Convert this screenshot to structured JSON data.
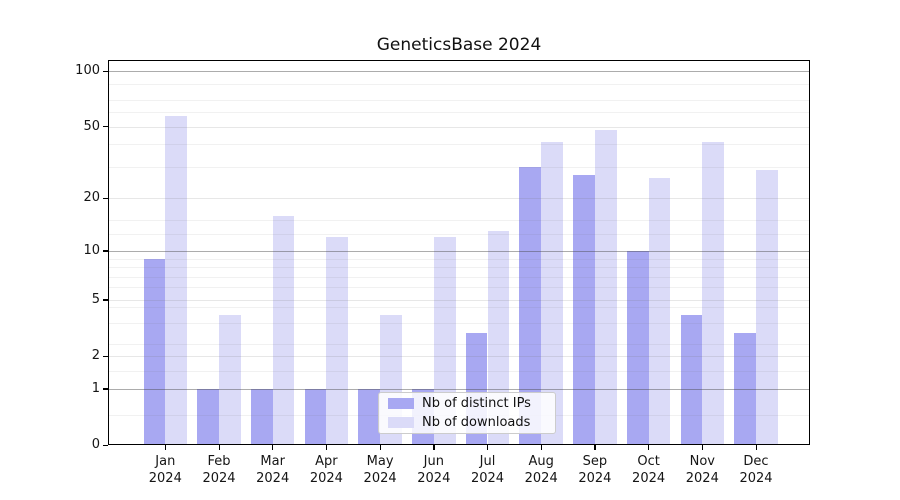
{
  "chart_data": {
    "type": "bar",
    "title": "GeneticsBase 2024",
    "categories": [
      "Jan",
      "Feb",
      "Mar",
      "Apr",
      "May",
      "Jun",
      "Jul",
      "Aug",
      "Sep",
      "Oct",
      "Nov",
      "Dec"
    ],
    "year_suffix": "2024",
    "series": [
      {
        "name": "Nb of distinct IPs",
        "color": "#a8a8f2",
        "values": [
          9,
          1,
          1,
          1,
          1,
          1,
          3,
          30,
          27,
          10,
          4,
          3
        ]
      },
      {
        "name": "Nb of downloads",
        "color": "#dbdbf8",
        "values": [
          57,
          4,
          16,
          12,
          4,
          12,
          13,
          41,
          48,
          26,
          41,
          29
        ]
      }
    ],
    "yscale": "log1p",
    "ylim": [
      0,
      115
    ],
    "y_ticks": [
      0,
      1,
      2,
      5,
      10,
      20,
      50,
      100
    ],
    "grid": {
      "on": true,
      "dark_lines": [
        1,
        10,
        100
      ],
      "light_lines": [
        2,
        5,
        20,
        50
      ],
      "minor_lines": [
        0.45,
        1.5,
        2.5,
        3.5,
        4.5,
        6,
        7,
        8,
        9,
        12.5,
        15,
        30,
        40,
        60,
        70,
        85
      ]
    },
    "legend": {
      "position": "lower center",
      "labels": [
        "Nb of distinct IPs",
        "Nb of downloads"
      ]
    },
    "colors": {
      "background": "#ffffff",
      "axis": "#000000",
      "text": "#151515",
      "series_ips": "#a8a8f2",
      "series_downloads": "#dbdbf8"
    }
  }
}
